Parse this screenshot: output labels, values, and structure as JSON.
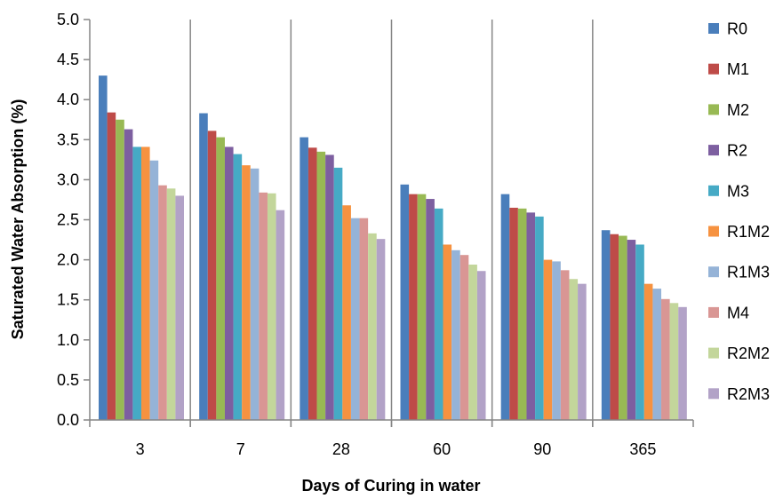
{
  "chart_data": {
    "type": "bar",
    "title": "",
    "xlabel": "Days of Curing in water",
    "ylabel": "Saturated Water Absorption (%)",
    "ylim": [
      0,
      5
    ],
    "yticks": [
      "0.0",
      "0.5",
      "1.0",
      "1.5",
      "2.0",
      "2.5",
      "3.0",
      "3.5",
      "4.0",
      "4.5",
      "5.0"
    ],
    "grid": false,
    "legend_position": "right",
    "categories": [
      "3",
      "7",
      "28",
      "60",
      "90",
      "365"
    ],
    "series": [
      {
        "name": "R0",
        "color": "#4a7ebb",
        "values": [
          4.3,
          3.83,
          3.53,
          2.94,
          2.82,
          2.37
        ]
      },
      {
        "name": "M1",
        "color": "#be4b48",
        "values": [
          3.84,
          3.61,
          3.4,
          2.82,
          2.65,
          2.32
        ]
      },
      {
        "name": "M2",
        "color": "#98b954",
        "values": [
          3.75,
          3.53,
          3.35,
          2.82,
          2.64,
          2.3
        ]
      },
      {
        "name": "R2",
        "color": "#7d5fa0",
        "values": [
          3.63,
          3.41,
          3.31,
          2.76,
          2.59,
          2.25
        ]
      },
      {
        "name": "M3",
        "color": "#46aac5",
        "values": [
          3.41,
          3.32,
          3.15,
          2.64,
          2.54,
          2.19
        ]
      },
      {
        "name": "R1M2",
        "color": "#f69240",
        "values": [
          3.41,
          3.18,
          2.68,
          2.19,
          2.0,
          1.7
        ]
      },
      {
        "name": "R1M3",
        "color": "#95b3d7",
        "values": [
          3.24,
          3.14,
          2.52,
          2.12,
          1.98,
          1.64
        ]
      },
      {
        "name": "M4",
        "color": "#d99694",
        "values": [
          2.93,
          2.84,
          2.52,
          2.06,
          1.87,
          1.51
        ]
      },
      {
        "name": "R2M2",
        "color": "#c3d69b",
        "values": [
          2.89,
          2.83,
          2.33,
          1.94,
          1.76,
          1.46
        ]
      },
      {
        "name": "R2M3",
        "color": "#b2a2c7",
        "values": [
          2.8,
          2.62,
          2.26,
          1.86,
          1.7,
          1.41
        ]
      }
    ]
  }
}
